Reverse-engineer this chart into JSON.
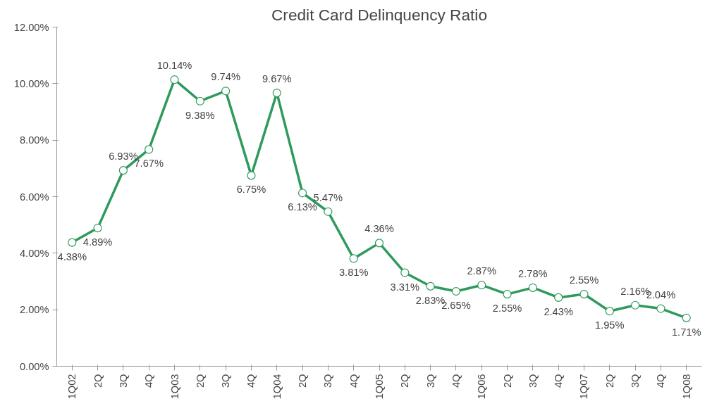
{
  "chart_data": {
    "type": "line",
    "title": "Credit Card Delinquency Ratio",
    "categories": [
      "1Q02",
      "2Q",
      "3Q",
      "4Q",
      "1Q03",
      "2Q",
      "3Q",
      "4Q",
      "1Q04",
      "2Q",
      "3Q",
      "4Q",
      "1Q05",
      "2Q",
      "3Q",
      "4Q",
      "1Q06",
      "2Q",
      "3Q",
      "4Q",
      "1Q07",
      "2Q",
      "3Q",
      "4Q",
      "1Q08"
    ],
    "series": [
      {
        "color": "#2e9a5e",
        "values": [
          4.38,
          4.89,
          6.93,
          7.67,
          10.14,
          9.38,
          9.74,
          6.75,
          9.67,
          6.13,
          5.47,
          3.81,
          4.36,
          3.31,
          2.83,
          2.65,
          2.87,
          2.55,
          2.78,
          2.43,
          2.55,
          1.95,
          2.16,
          2.04,
          1.71
        ],
        "value_labels": [
          "4.38%",
          "4.89%",
          "6.93%",
          "7.67%",
          "10.14%",
          "9.38%",
          "9.74%",
          "6.75%",
          "9.67%",
          "6.13%",
          "5.47%",
          "3.81%",
          "4.36%",
          "3.31%",
          "2.83%",
          "2.65%",
          "2.87%",
          "2.55%",
          "2.78%",
          "2.43%",
          "2.55%",
          "1.95%",
          "2.16%",
          "2.04%",
          "1.71%"
        ]
      }
    ],
    "ylim": [
      0,
      12
    ],
    "yticks": [
      {
        "value": 0,
        "label": "0.00%"
      },
      {
        "value": 2,
        "label": "2.00%"
      },
      {
        "value": 4,
        "label": "4.00%"
      },
      {
        "value": 6,
        "label": "6.00%"
      },
      {
        "value": 8,
        "label": "8.00%"
      },
      {
        "value": 10,
        "label": "10.00%"
      },
      {
        "value": 12,
        "label": "12.00%"
      }
    ],
    "grid": false,
    "marker": "circle",
    "line_style": "solid"
  }
}
